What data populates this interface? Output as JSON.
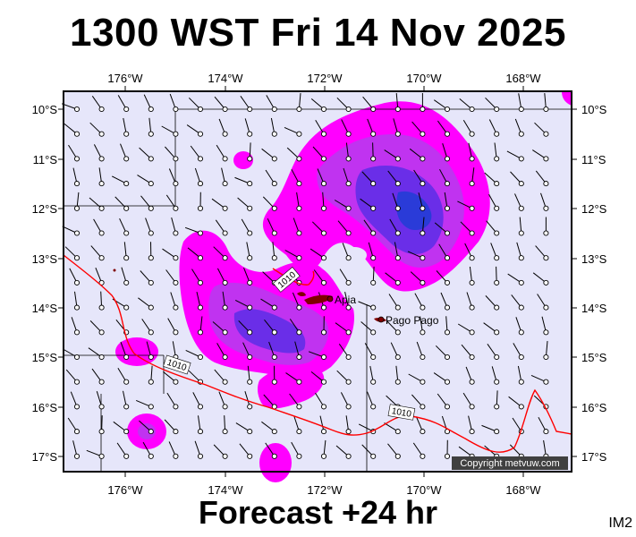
{
  "header": {
    "title": "1300 WST Fri 14 Nov 2025"
  },
  "footer": {
    "forecast_label": "Forecast +24 hr",
    "map_code": "IM2"
  },
  "map": {
    "lon_labels": [
      "176°W",
      "174°W",
      "172°W",
      "170°W",
      "168°W"
    ],
    "lat_labels": [
      "10°S",
      "11°S",
      "12°S",
      "13°S",
      "14°S",
      "15°S",
      "16°S",
      "17°S"
    ],
    "cities": [
      {
        "name": "Apia",
        "lon": -171.77,
        "lat": -13.83
      },
      {
        "name": "Pago Pago",
        "lon": -170.7,
        "lat": -14.28
      }
    ],
    "isobar_label": "1010",
    "copyright": "Copyright metvuw.com",
    "colors": {
      "ocean": "#e6e6fa",
      "rain_light": "#ff00ff",
      "rain_medium": "#c033f0",
      "rain_heavy": "#6a2ee8",
      "rain_extreme": "#2a3bd8",
      "isobar": "#ff0000",
      "land": "#800000"
    }
  }
}
